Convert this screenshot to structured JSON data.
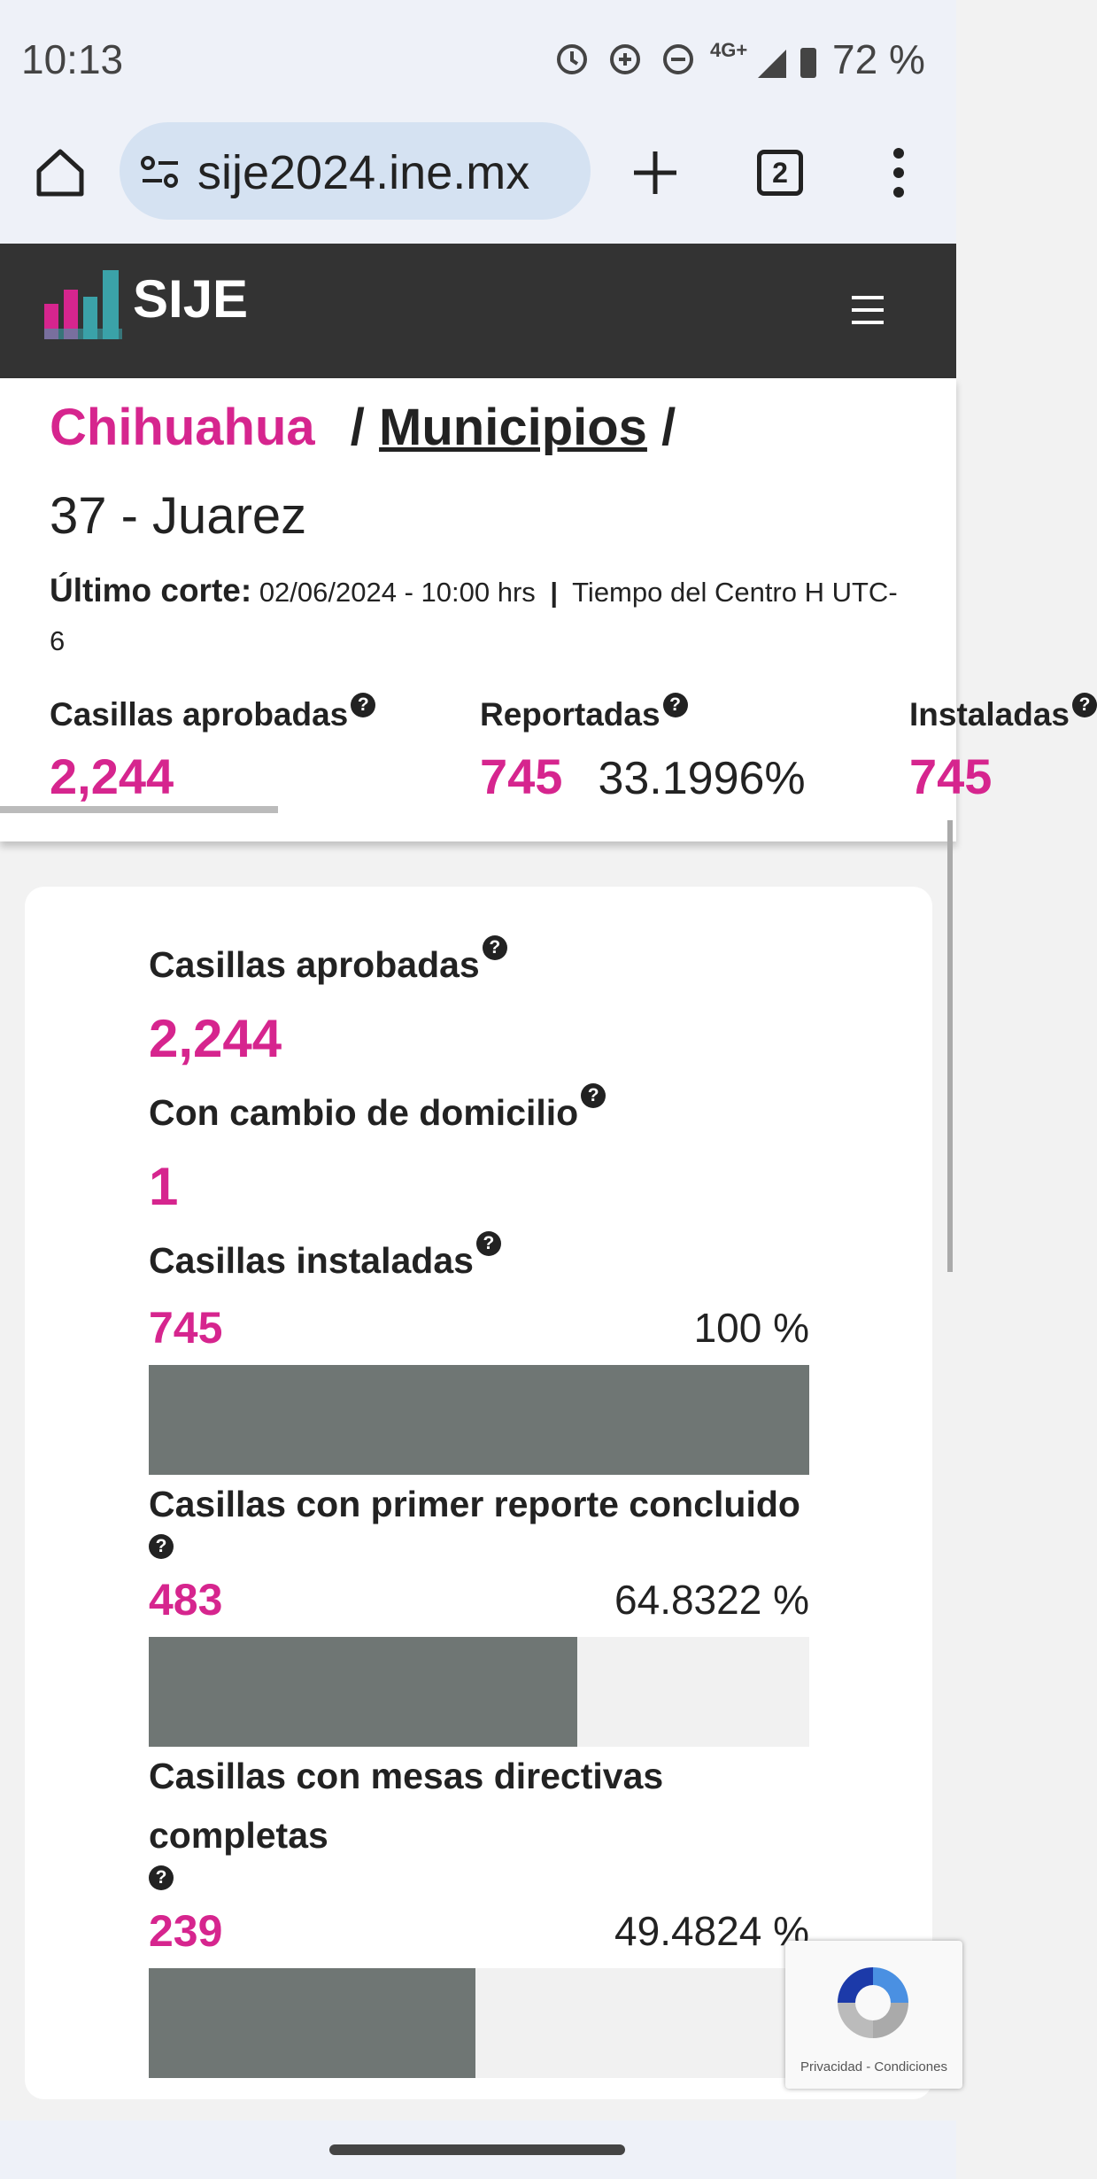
{
  "status_bar": {
    "time": "10:13",
    "network": "4G+",
    "battery": "72 %"
  },
  "browser": {
    "url": "sije2024.ine.mx",
    "tabs": "2"
  },
  "header": {
    "title": "SIJE"
  },
  "breadcrumb": {
    "state": "Chihuahua",
    "separator": "/",
    "section": "Municipios",
    "location": "37 - Juarez"
  },
  "cutoff": {
    "label": "Último corte:",
    "datetime": "02/06/2024 - 10:00 hrs",
    "separator": "|",
    "timezone": "Tiempo del Centro H UTC-6"
  },
  "help_icon": "?",
  "summary": [
    {
      "label": "Casillas aprobadas",
      "value": "2,244"
    },
    {
      "label": "Reportadas",
      "value": "745",
      "percent": "33.1996%"
    },
    {
      "label": "Instaladas",
      "value": "745"
    }
  ],
  "card": {
    "items": [
      {
        "label": "Casillas aprobadas",
        "value": "2,244"
      },
      {
        "label": "Con cambio de domicilio",
        "value": "1"
      },
      {
        "label": "Casillas instaladas",
        "count": "745",
        "percent": {
          "value": 100,
          "label": "100 %"
        }
      },
      {
        "label": "Casillas con primer reporte concluido",
        "count": "483",
        "percent": {
          "value": 64.8322,
          "label": "64.8322 %"
        }
      },
      {
        "label": "Casillas con mesas directivas completas",
        "count": "239",
        "percent": {
          "value": 49.4824,
          "label": "49.4824 %"
        }
      }
    ]
  },
  "recaptcha": {
    "links": "Privacidad - Condiciones"
  }
}
